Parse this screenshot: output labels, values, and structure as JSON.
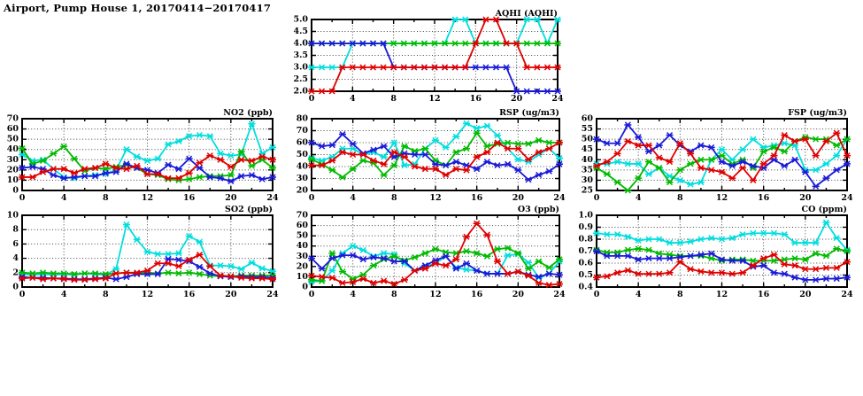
{
  "page_title": "Airport, Pump House 1, 20170414−20170417",
  "palette": {
    "red": "#e00000",
    "green": "#00bb00",
    "blue": "#1a1ad9",
    "cyan": "#00dede"
  },
  "chart_data": [
    {
      "id": "aqhi",
      "type": "line",
      "title": "AQHI (AQHI)",
      "xlim": [
        0,
        24
      ],
      "xticks": [
        0,
        4,
        8,
        12,
        16,
        20,
        24
      ],
      "xtick_labels": [
        "0",
        "4",
        "8",
        "12",
        "16",
        "20",
        "24"
      ],
      "x_minor_step": 2,
      "ylim": [
        2.0,
        5.0
      ],
      "yticks": [
        2.0,
        2.5,
        3.0,
        3.5,
        4.0,
        4.5,
        5.0
      ],
      "ytick_labels": [
        "2.0",
        "2.5",
        "3.0",
        "3.5",
        "4.0",
        "4.5",
        "5.0"
      ],
      "grid": "dotted",
      "series": [
        {
          "name": "series-cyan",
          "color": "cyan",
          "values": [
            3,
            3,
            3,
            3,
            4,
            4,
            4,
            4,
            4,
            4,
            4,
            4,
            4,
            4,
            5,
            5,
            4,
            4,
            4,
            4,
            4,
            5,
            5,
            4,
            5
          ]
        },
        {
          "name": "series-green",
          "color": "green",
          "values": [
            4,
            4,
            4,
            4,
            4,
            4,
            4,
            4,
            4,
            4,
            4,
            4,
            4,
            4,
            4,
            4,
            4,
            4,
            4,
            4,
            4,
            4,
            4,
            4,
            4
          ]
        },
        {
          "name": "series-blue",
          "color": "blue",
          "values": [
            4,
            4,
            4,
            4,
            4,
            4,
            4,
            4,
            3,
            3,
            3,
            3,
            3,
            3,
            3,
            3,
            3,
            3,
            3,
            3,
            2,
            2,
            2,
            2,
            2
          ]
        },
        {
          "name": "series-red",
          "color": "red",
          "values": [
            2,
            2,
            2,
            3,
            3,
            3,
            3,
            3,
            3,
            3,
            3,
            3,
            3,
            3,
            3,
            3,
            4,
            5,
            5,
            4,
            4,
            3,
            3,
            3,
            3
          ]
        }
      ]
    },
    {
      "id": "no2",
      "type": "line",
      "title": "NO2 (ppb)",
      "xlim": [
        0,
        24
      ],
      "xticks": [
        0,
        4,
        8,
        12,
        16,
        20,
        24
      ],
      "xtick_labels": [
        "0",
        "4",
        "8",
        "12",
        "16",
        "20",
        "24"
      ],
      "x_minor_step": 2,
      "ylim": [
        0,
        70
      ],
      "yticks": [
        0,
        10,
        20,
        30,
        40,
        50,
        60,
        70
      ],
      "ytick_labels": [
        "0",
        "10",
        "20",
        "30",
        "40",
        "50",
        "60",
        "70"
      ],
      "grid": "dotted",
      "series": [
        {
          "name": "series-cyan",
          "color": "cyan",
          "values": [
            35,
            29,
            30,
            21,
            13,
            12,
            14,
            15,
            16,
            20,
            40,
            33,
            29,
            31,
            45,
            48,
            53,
            54,
            53,
            36,
            34,
            35,
            65,
            36,
            42
          ]
        },
        {
          "name": "series-green",
          "color": "green",
          "values": [
            41,
            26,
            29,
            36,
            43,
            31,
            19,
            22,
            21,
            23,
            25,
            22,
            16,
            15,
            11,
            10,
            11,
            13,
            14,
            14,
            15,
            38,
            24,
            30,
            22
          ]
        },
        {
          "name": "series-blue",
          "color": "blue",
          "values": [
            22,
            23,
            21,
            15,
            12,
            13,
            14,
            14,
            17,
            18,
            26,
            22,
            20,
            17,
            25,
            21,
            31,
            22,
            13,
            12,
            9,
            14,
            15,
            11,
            13
          ]
        },
        {
          "name": "series-red",
          "color": "red",
          "values": [
            13,
            13,
            18,
            21,
            21,
            17,
            21,
            22,
            26,
            22,
            21,
            24,
            16,
            16,
            12,
            12,
            17,
            27,
            34,
            30,
            23,
            30,
            29,
            33,
            30
          ]
        }
      ]
    },
    {
      "id": "rsp",
      "type": "line",
      "title": "RSP (ug/m3)",
      "xlim": [
        0,
        24
      ],
      "xticks": [
        0,
        4,
        8,
        12,
        16,
        20,
        24
      ],
      "xtick_labels": [
        "0",
        "4",
        "8",
        "12",
        "16",
        "20",
        "24"
      ],
      "x_minor_step": 2,
      "ylim": [
        20,
        80
      ],
      "yticks": [
        20,
        30,
        40,
        50,
        60,
        70,
        80
      ],
      "ytick_labels": [
        "20",
        "30",
        "40",
        "50",
        "60",
        "70",
        "80"
      ],
      "grid": "dotted",
      "series": [
        {
          "name": "series-cyan",
          "color": "cyan",
          "values": [
            47,
            45,
            48,
            55,
            55,
            50,
            52,
            48,
            60,
            41,
            42,
            55,
            62,
            56,
            65,
            76,
            72,
            74,
            66,
            55,
            46,
            44,
            50,
            55,
            47
          ]
        },
        {
          "name": "series-green",
          "color": "green",
          "values": [
            46,
            42,
            37,
            31,
            38,
            45,
            43,
            33,
            41,
            57,
            53,
            55,
            45,
            41,
            52,
            55,
            68,
            57,
            59,
            60,
            59,
            59,
            62,
            60,
            60
          ]
        },
        {
          "name": "series-blue",
          "color": "blue",
          "values": [
            60,
            57,
            58,
            67,
            59,
            51,
            54,
            57,
            48,
            51,
            50,
            50,
            42,
            41,
            44,
            41,
            38,
            44,
            41,
            42,
            37,
            29,
            33,
            36,
            42
          ]
        },
        {
          "name": "series-red",
          "color": "red",
          "values": [
            41,
            41,
            45,
            52,
            50,
            50,
            45,
            42,
            52,
            48,
            40,
            38,
            38,
            33,
            38,
            37,
            48,
            52,
            60,
            55,
            55,
            46,
            52,
            55,
            60
          ]
        }
      ]
    },
    {
      "id": "fsp",
      "type": "line",
      "title": "FSP (ug/m3)",
      "xlim": [
        0,
        24
      ],
      "xticks": [
        0,
        4,
        8,
        12,
        16,
        20,
        24
      ],
      "xtick_labels": [
        "0",
        "4",
        "8",
        "12",
        "16",
        "20",
        "24"
      ],
      "x_minor_step": 2,
      "ylim": [
        25,
        60
      ],
      "yticks": [
        25,
        30,
        35,
        40,
        45,
        50,
        55,
        60
      ],
      "ytick_labels": [
        "25",
        "30",
        "35",
        "40",
        "45",
        "50",
        "55",
        "60"
      ],
      "grid": "dotted",
      "series": [
        {
          "name": "series-cyan",
          "color": "cyan",
          "values": [
            38,
            38,
            39,
            38,
            38,
            33,
            36,
            32,
            30,
            28,
            29,
            40,
            45,
            40,
            45,
            50,
            46,
            47,
            48,
            47,
            35,
            35,
            38,
            42,
            50
          ]
        },
        {
          "name": "series-green",
          "color": "green",
          "values": [
            36,
            33,
            29,
            25,
            31,
            39,
            36,
            29,
            35,
            38,
            40,
            40,
            42,
            38,
            40,
            36,
            44,
            46,
            44,
            49,
            51,
            50,
            50,
            47,
            50
          ]
        },
        {
          "name": "series-blue",
          "color": "blue",
          "values": [
            50,
            48,
            48,
            57,
            51,
            44,
            47,
            52,
            47,
            44,
            47,
            46,
            39,
            37,
            39,
            37,
            36,
            40,
            37,
            40,
            34,
            27,
            31,
            35,
            38
          ]
        },
        {
          "name": "series-red",
          "color": "red",
          "values": [
            37,
            39,
            43,
            49,
            47,
            47,
            41,
            39,
            48,
            43,
            36,
            35,
            34,
            31,
            36,
            30,
            38,
            42,
            52,
            49,
            50,
            42,
            49,
            53,
            42
          ]
        }
      ]
    },
    {
      "id": "so2",
      "type": "line",
      "title": "SO2 (ppb)",
      "xlim": [
        0,
        24
      ],
      "xticks": [
        0,
        4,
        8,
        12,
        16,
        20,
        24
      ],
      "xtick_labels": [
        "0",
        "4",
        "8",
        "12",
        "16",
        "20",
        "24"
      ],
      "x_minor_step": 2,
      "ylim": [
        0,
        10
      ],
      "yticks": [
        0,
        2,
        4,
        6,
        8,
        10
      ],
      "ytick_labels": [
        "0",
        "2",
        "4",
        "6",
        "8",
        "10"
      ],
      "grid": "dotted",
      "series": [
        {
          "name": "series-cyan",
          "color": "cyan",
          "values": [
            1.8,
            1.7,
            1.8,
            1.7,
            1.8,
            1.7,
            1.9,
            1.8,
            1.7,
            2.5,
            8.7,
            6.6,
            4.9,
            4.6,
            4.6,
            4.7,
            7.1,
            6.3,
            3.0,
            3.0,
            2.9,
            2.5,
            3.4,
            2.6,
            2.2
          ]
        },
        {
          "name": "series-green",
          "color": "green",
          "values": [
            2.0,
            1.9,
            2.0,
            1.9,
            1.9,
            1.8,
            1.9,
            1.9,
            1.8,
            1.9,
            2.0,
            1.9,
            2.0,
            1.9,
            2.0,
            1.9,
            2.0,
            1.8,
            1.6,
            1.5,
            1.5,
            1.6,
            1.6,
            1.6,
            1.6
          ]
        },
        {
          "name": "series-blue",
          "color": "blue",
          "values": [
            1.4,
            1.3,
            1.3,
            1.2,
            1.2,
            1.1,
            1.1,
            1.2,
            1.3,
            1.1,
            1.4,
            1.8,
            1.8,
            1.8,
            3.9,
            3.8,
            3.6,
            2.8,
            1.9,
            1.5,
            1.4,
            1.5,
            1.4,
            1.4,
            1.3
          ]
        },
        {
          "name": "series-red",
          "color": "red",
          "values": [
            1.2,
            1.3,
            1.1,
            1.2,
            1.1,
            1.0,
            1.0,
            1.1,
            1.2,
            1.9,
            2.0,
            2.0,
            2.3,
            3.3,
            3.3,
            2.9,
            3.8,
            4.5,
            2.9,
            1.6,
            1.5,
            1.3,
            1.2,
            1.2,
            1.1
          ]
        }
      ]
    },
    {
      "id": "o3",
      "type": "line",
      "title": "O3 (ppb)",
      "xlim": [
        0,
        24
      ],
      "xticks": [
        0,
        4,
        8,
        12,
        16,
        20,
        24
      ],
      "xtick_labels": [
        "0",
        "4",
        "8",
        "12",
        "16",
        "20",
        "24"
      ],
      "x_minor_step": 2,
      "ylim": [
        0,
        70
      ],
      "yticks": [
        0,
        10,
        20,
        30,
        40,
        50,
        60,
        70
      ],
      "ytick_labels": [
        "0",
        "10",
        "20",
        "30",
        "40",
        "50",
        "60",
        "70"
      ],
      "grid": "dotted",
      "series": [
        {
          "name": "series-cyan",
          "color": "cyan",
          "values": [
            5,
            6,
            16,
            33,
            40,
            36,
            30,
            33,
            32,
            23,
            16,
            20,
            23,
            30,
            19,
            17,
            16,
            13,
            13,
            31,
            32,
            24,
            9,
            13,
            25
          ]
        },
        {
          "name": "series-green",
          "color": "green",
          "values": [
            7,
            6,
            33,
            15,
            8,
            12,
            21,
            27,
            30,
            26,
            29,
            33,
            37,
            34,
            33,
            35,
            33,
            30,
            37,
            38,
            33,
            18,
            25,
            19,
            27
          ]
        },
        {
          "name": "series-blue",
          "color": "blue",
          "values": [
            28,
            18,
            28,
            31,
            31,
            27,
            29,
            28,
            25,
            25,
            16,
            21,
            26,
            30,
            18,
            23,
            16,
            13,
            13,
            13,
            15,
            12,
            10,
            13,
            12
          ]
        },
        {
          "name": "series-red",
          "color": "red",
          "values": [
            11,
            10,
            9,
            4,
            5,
            8,
            4,
            6,
            3,
            7,
            16,
            18,
            23,
            21,
            27,
            49,
            62,
            51,
            25,
            13,
            15,
            11,
            4,
            2,
            3
          ]
        }
      ]
    },
    {
      "id": "co",
      "type": "line",
      "title": "CO (ppm)",
      "xlim": [
        0,
        24
      ],
      "xticks": [
        0,
        4,
        8,
        12,
        16,
        20,
        24
      ],
      "xtick_labels": [
        "0",
        "4",
        "8",
        "12",
        "16",
        "20",
        "24"
      ],
      "x_minor_step": 2,
      "ylim": [
        0.4,
        1.0
      ],
      "yticks": [
        0.4,
        0.5,
        0.6,
        0.7,
        0.8,
        0.9,
        1.0
      ],
      "ytick_labels": [
        "0.4",
        "0.5",
        "0.6",
        "0.7",
        "0.8",
        "0.9",
        "1.0"
      ],
      "grid": "dotted",
      "series": [
        {
          "name": "series-cyan",
          "color": "cyan",
          "values": [
            0.85,
            0.84,
            0.84,
            0.82,
            0.79,
            0.8,
            0.8,
            0.77,
            0.77,
            0.78,
            0.8,
            0.81,
            0.8,
            0.81,
            0.84,
            0.85,
            0.85,
            0.85,
            0.84,
            0.77,
            0.77,
            0.77,
            0.94,
            0.81,
            0.71
          ]
        },
        {
          "name": "series-green",
          "color": "green",
          "values": [
            0.71,
            0.69,
            0.69,
            0.71,
            0.72,
            0.71,
            0.68,
            0.67,
            0.66,
            0.66,
            0.66,
            0.64,
            0.62,
            0.63,
            0.63,
            0.62,
            0.62,
            0.62,
            0.63,
            0.64,
            0.63,
            0.68,
            0.66,
            0.72,
            0.7
          ]
        },
        {
          "name": "series-blue",
          "color": "blue",
          "values": [
            0.7,
            0.66,
            0.66,
            0.66,
            0.63,
            0.64,
            0.64,
            0.64,
            0.65,
            0.66,
            0.67,
            0.68,
            0.63,
            0.62,
            0.62,
            0.57,
            0.58,
            0.52,
            0.51,
            0.48,
            0.46,
            0.46,
            0.47,
            0.47,
            0.48
          ]
        },
        {
          "name": "series-red",
          "color": "red",
          "values": [
            0.48,
            0.49,
            0.52,
            0.54,
            0.51,
            0.51,
            0.51,
            0.52,
            0.61,
            0.55,
            0.53,
            0.52,
            0.52,
            0.51,
            0.52,
            0.58,
            0.64,
            0.67,
            0.59,
            0.58,
            0.55,
            0.55,
            0.56,
            0.56,
            0.61
          ]
        }
      ]
    }
  ]
}
